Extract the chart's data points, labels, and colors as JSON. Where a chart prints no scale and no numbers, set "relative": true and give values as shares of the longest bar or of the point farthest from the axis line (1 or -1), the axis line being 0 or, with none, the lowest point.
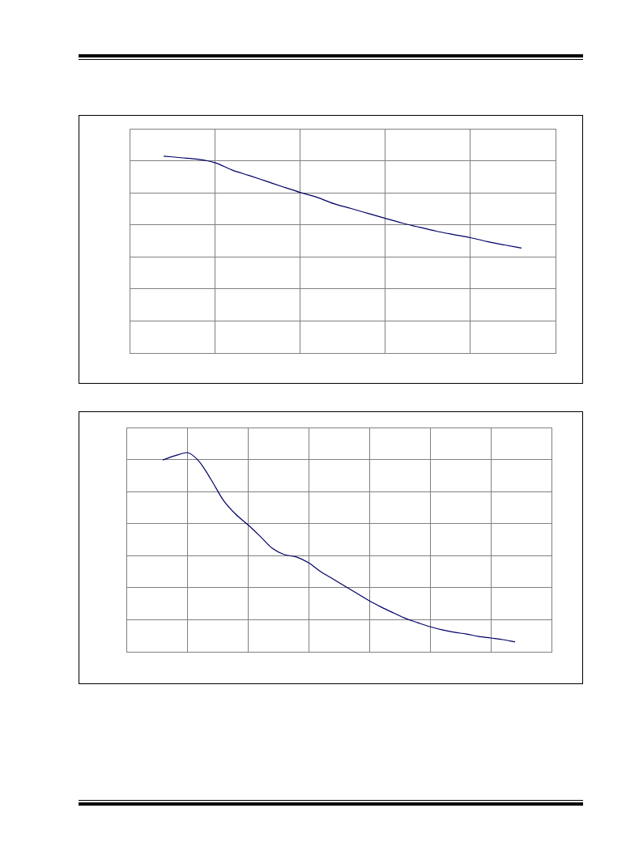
{
  "chart_data": [
    {
      "type": "line",
      "relative": true,
      "grid": true,
      "categories": [
        null,
        null,
        null,
        null,
        null,
        null,
        null,
        null,
        null,
        null,
        null,
        null,
        null,
        null,
        null,
        null,
        null,
        null,
        null,
        null,
        null,
        null,
        null,
        null,
        null,
        null
      ],
      "series": [
        {
          "color": "#000066",
          "values": [
            null,
            null,
            1,
            0.992,
            0.984,
            0.967,
            0.93,
            0.902,
            0.873,
            0.844,
            0.816,
            0.791,
            0.758,
            0.734,
            0.709,
            0.684,
            0.66,
            0.639,
            0.619,
            0.602,
            0.586,
            0.566,
            0.549,
            0.533,
            null,
            null
          ]
        }
      ]
    },
    {
      "type": "line",
      "relative": true,
      "grid": true,
      "categories": [
        null,
        null,
        null,
        null,
        null,
        null,
        null,
        null,
        null,
        null,
        null,
        null,
        null,
        null,
        null,
        null,
        null,
        null,
        null,
        null,
        null,
        null,
        null,
        null,
        null,
        null,
        null,
        null,
        null,
        null,
        null,
        null,
        null,
        null,
        null,
        null
      ],
      "series": [
        {
          "color": "#000066",
          "values": [
            null,
            null,
            null,
            0.963,
            0.984,
            1,
            0.955,
            0.862,
            0.76,
            0.691,
            0.638,
            0.581,
            0.52,
            0.488,
            0.476,
            0.447,
            0.402,
            0.366,
            0.329,
            0.293,
            0.256,
            0.224,
            0.195,
            0.167,
            0.146,
            0.126,
            0.11,
            0.098,
            0.089,
            0.077,
            0.069,
            0.061,
            0.049,
            null,
            null,
            null
          ]
        }
      ]
    }
  ]
}
